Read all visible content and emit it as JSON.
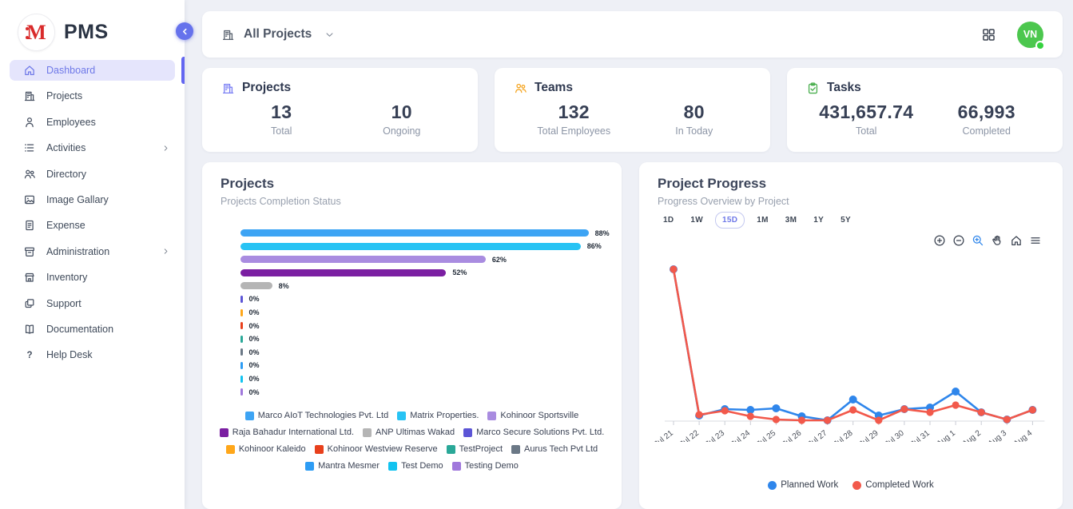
{
  "app": {
    "name": "PMS",
    "logo_letter": "M"
  },
  "colors": {
    "accent": "#6366f1",
    "sidebar_active_bg": "#e5e5fc",
    "avatar_bg": "#4cc74e",
    "online_dot": "#35d23f",
    "logo_red": "#d92b2b",
    "planned_work": "#2f86eb",
    "completed_work": "#f2594b"
  },
  "sidebar": {
    "items": [
      {
        "label": "Dashboard",
        "icon": "home",
        "active": true
      },
      {
        "label": "Projects",
        "icon": "building"
      },
      {
        "label": "Employees",
        "icon": "user"
      },
      {
        "label": "Activities",
        "icon": "list",
        "chevron": true
      },
      {
        "label": "Directory",
        "icon": "users"
      },
      {
        "label": "Image Gallary",
        "icon": "image"
      },
      {
        "label": "Expense",
        "icon": "receipt"
      },
      {
        "label": "Administration",
        "icon": "archive",
        "chevron": true
      },
      {
        "label": "Inventory",
        "icon": "store"
      },
      {
        "label": "Support",
        "icon": "copy"
      },
      {
        "label": "Documentation",
        "icon": "book"
      },
      {
        "label": "Help Desk",
        "icon": "question"
      }
    ]
  },
  "topbar": {
    "selector_label": "All Projects",
    "avatar": "VN"
  },
  "stats": [
    {
      "title": "Projects",
      "icon": "building",
      "icon_color": "#7b80f4",
      "metrics": [
        {
          "value": "13",
          "label": "Total"
        },
        {
          "value": "10",
          "label": "Ongoing"
        }
      ]
    },
    {
      "title": "Teams",
      "icon": "users",
      "icon_color": "#f5a623",
      "metrics": [
        {
          "value": "132",
          "label": "Total Employees"
        },
        {
          "value": "80",
          "label": "In Today"
        }
      ]
    },
    {
      "title": "Tasks",
      "icon": "clipboard",
      "icon_color": "#4caf50",
      "metrics": [
        {
          "value": "431,657.74",
          "label": "Total"
        },
        {
          "value": "66,993",
          "label": "Completed"
        }
      ]
    }
  ],
  "projects_card": {
    "title": "Projects",
    "subtitle": "Projects Completion Status"
  },
  "progress_card": {
    "title": "Project Progress",
    "subtitle": "Progress Overview by Project",
    "ranges": [
      "1D",
      "1W",
      "15D",
      "1M",
      "3M",
      "1Y",
      "5Y"
    ],
    "active_range": "15D",
    "toolbar": [
      "zoom-in",
      "zoom-out",
      "zoom-box",
      "pan",
      "home",
      "menu"
    ],
    "active_tool": "zoom-box"
  },
  "chart_data": [
    {
      "type": "bar",
      "orientation": "horizontal",
      "title": "Projects",
      "subtitle": "Projects Completion Status",
      "categories": [
        "Marco AIoT Technologies Pvt. Ltd",
        "Matrix Properties.",
        "Kohinoor Sportsville",
        "Raja Bahadur International Ltd.",
        "ANP Ultimas Wakad",
        "Marco Secure Solutions Pvt. Ltd.",
        "Kohinoor Kaleido",
        "Kohinoor Westview Reserve",
        "TestProject",
        "Aurus Tech Pvt Ltd",
        "Mantra Mesmer",
        "Test Demo",
        "Testing Demo"
      ],
      "values": [
        88,
        86,
        62,
        52,
        8,
        0,
        0,
        0,
        0,
        0,
        0,
        0,
        0
      ],
      "value_labels": [
        "88%",
        "86%",
        "62%",
        "52%",
        "8%",
        "0%",
        "0%",
        "0%",
        "0%",
        "0%",
        "0%",
        "0%",
        "0%"
      ],
      "colors": [
        "#3da4f4",
        "#28c3f4",
        "#a98ce0",
        "#7b1fa2",
        "#b5b5b5",
        "#5c55d6",
        "#ffa71a",
        "#e8401c",
        "#2aa898",
        "#6b7886",
        "#2d9cf4",
        "#12c3f0",
        "#a078dc"
      ],
      "xlim": [
        0,
        100
      ],
      "legend_position": "bottom"
    },
    {
      "type": "line",
      "title": "Project Progress",
      "subtitle": "Progress Overview by Project",
      "x": [
        "Jul 21",
        "Jul 22",
        "Jul 23",
        "Jul 24",
        "Jul 25",
        "Jul 26",
        "Jul 27",
        "Jul 28",
        "Jul 29",
        "Jul 30",
        "Jul 31",
        "Aug 1",
        "Aug 2",
        "Aug 3",
        "Aug 4"
      ],
      "series": [
        {
          "name": "Planned Work",
          "color": "#2f86eb",
          "values": [
            95,
            3.5,
            7.5,
            7,
            8,
            3,
            0.5,
            13.5,
            3.5,
            7.5,
            8.5,
            18.5,
            5.5,
            1,
            7
          ]
        },
        {
          "name": "Completed Work",
          "color": "#f2594b",
          "values": [
            95,
            4,
            6.5,
            3,
            1,
            0.5,
            0.5,
            7,
            0.5,
            7.5,
            5.5,
            10,
            5.5,
            1,
            7
          ]
        }
      ],
      "ylim": [
        0,
        100
      ],
      "grid": false,
      "legend_position": "bottom"
    }
  ]
}
